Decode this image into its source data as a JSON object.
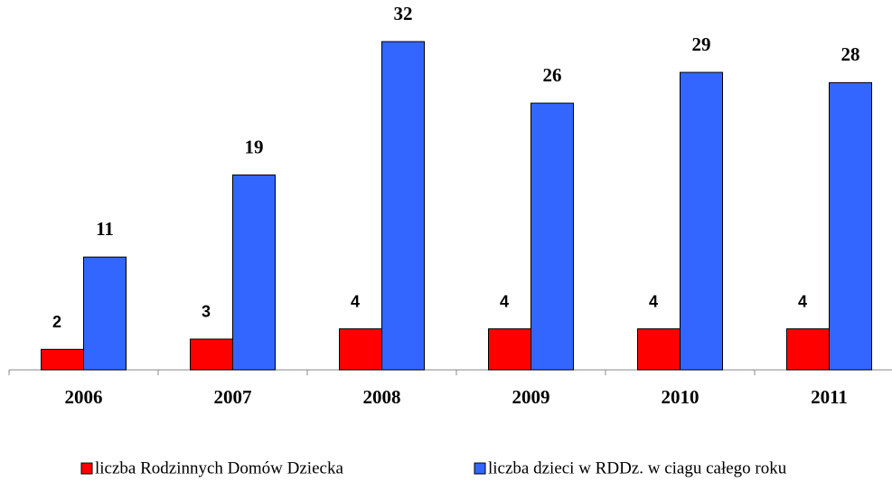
{
  "chart_data": {
    "type": "bar",
    "categories": [
      "2006",
      "2007",
      "2008",
      "2009",
      "2010",
      "2011"
    ],
    "series": [
      {
        "name": "liczba Rodzinnych Domów Dziecka",
        "color": "#ff0000",
        "values": [
          2,
          3,
          4,
          4,
          4,
          4
        ]
      },
      {
        "name": "liczba dzieci w RDDz. w ciagu całego roku",
        "color": "#3366ff",
        "values": [
          11,
          19,
          32,
          26,
          29,
          28
        ]
      }
    ],
    "legend": "bottom"
  }
}
